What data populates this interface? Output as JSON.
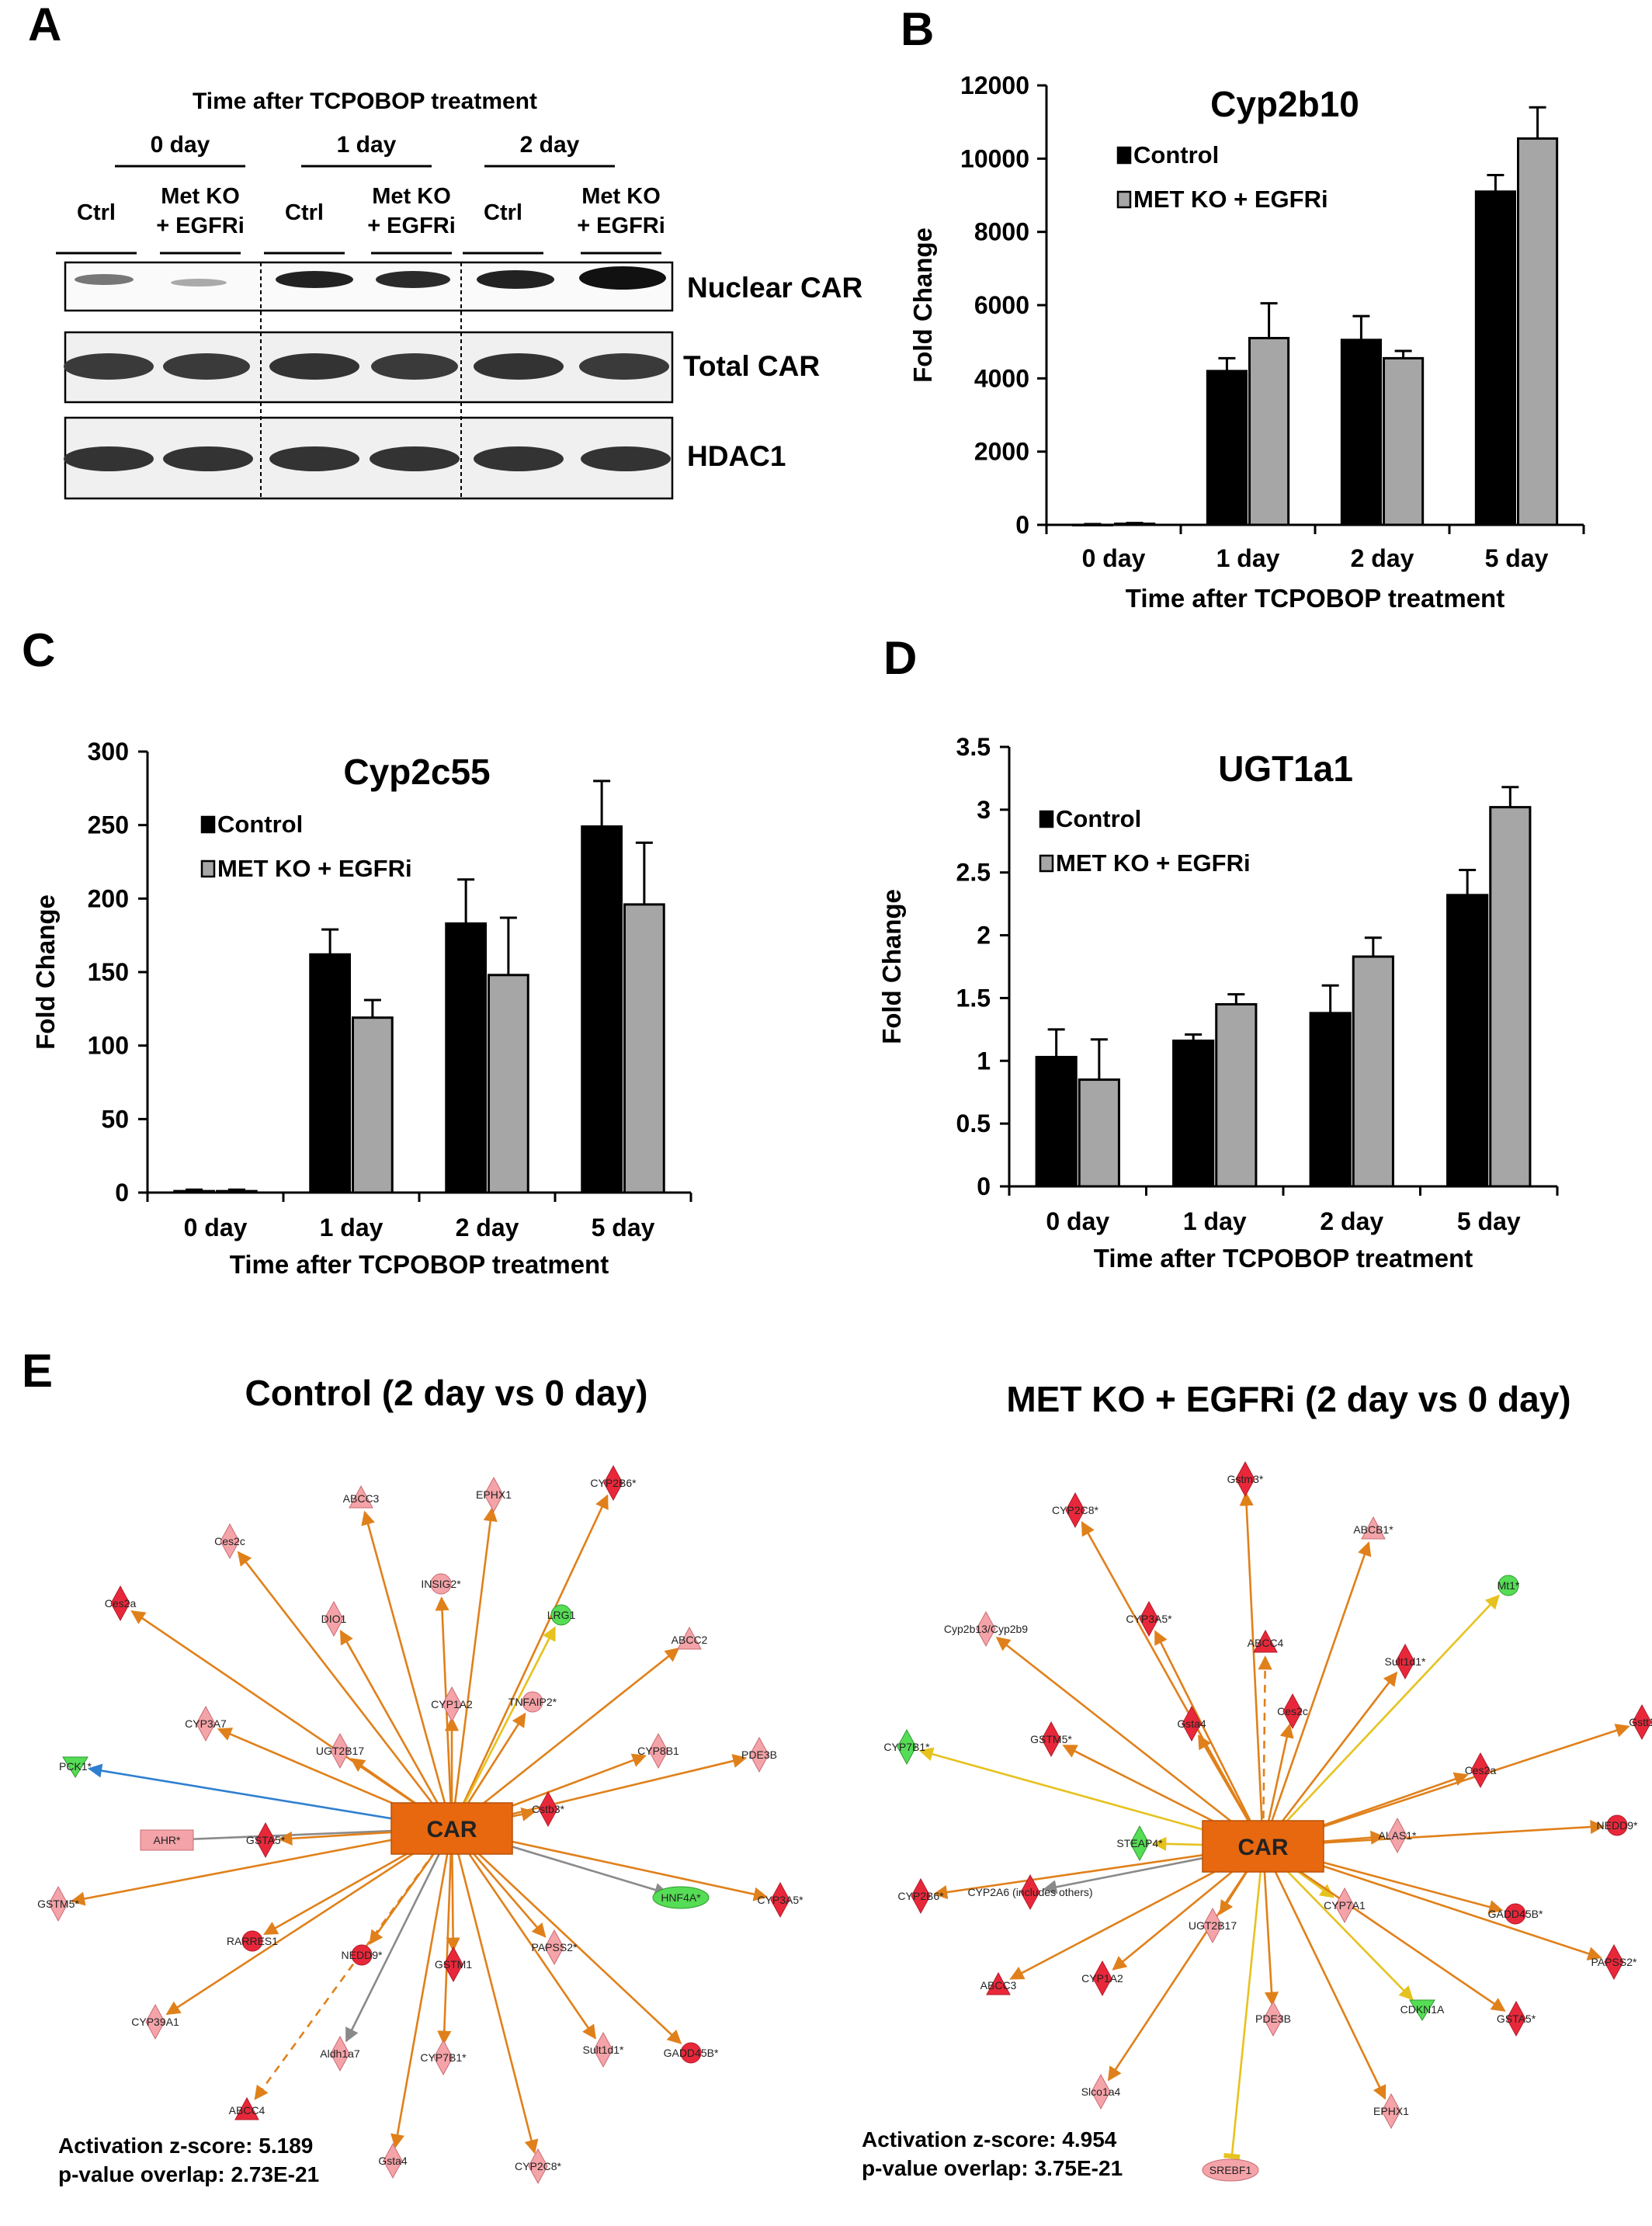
{
  "panel_a": {
    "letter": "A",
    "header": "Time after TCPOBOP treatment",
    "day_groups": [
      "0 day",
      "1 day",
      "2 day"
    ],
    "lanes": [
      "Ctrl",
      "Met KO\n+ EGFRi",
      "Ctrl",
      "Met KO\n+ EGFRi",
      "Ctrl",
      "Met KO\n+ EGFRi"
    ],
    "blots": [
      "Nuclear  CAR",
      "Total  CAR",
      "HDAC1"
    ]
  },
  "chart_data": [
    {
      "id": "B",
      "type": "bar",
      "title": "Cyp2b10",
      "categories": [
        "0 day",
        "1 day",
        "2 day",
        "5 day"
      ],
      "xlabel": "Time after TCPOBOP treatment",
      "ylabel": "Fold Change",
      "ylim": [
        0,
        12000
      ],
      "yticks": [
        0,
        2000,
        4000,
        6000,
        8000,
        10000,
        12000
      ],
      "legend_position": "top-left",
      "series": [
        {
          "name": "Control",
          "color": "#000000",
          "values": [
            1,
            4200,
            5050,
            9100
          ],
          "errors": [
            20,
            350,
            650,
            450
          ]
        },
        {
          "name": "MET KO + EGFRi",
          "color": "#a6a6a6",
          "values": [
            30,
            5100,
            4550,
            10550
          ],
          "errors": [
            20,
            950,
            200,
            850
          ]
        }
      ]
    },
    {
      "id": "C",
      "type": "bar",
      "title": "Cyp2c55",
      "categories": [
        "0 day",
        "1 day",
        "2 day",
        "5 day"
      ],
      "xlabel": "Time after TCPOBOP treatment",
      "ylabel": "Fold Change",
      "ylim": [
        0,
        300
      ],
      "yticks": [
        0,
        50,
        100,
        150,
        200,
        250,
        300
      ],
      "legend_position": "top-left",
      "series": [
        {
          "name": "Control",
          "color": "#000000",
          "values": [
            1,
            162,
            183,
            249
          ],
          "errors": [
            1,
            17,
            30,
            31
          ]
        },
        {
          "name": "MET KO + EGFRi",
          "color": "#a6a6a6",
          "values": [
            1,
            119,
            148,
            196
          ],
          "errors": [
            1,
            12,
            39,
            42
          ]
        }
      ]
    },
    {
      "id": "D",
      "type": "bar",
      "title": "UGT1a1",
      "categories": [
        "0 day",
        "1 day",
        "2 day",
        "5 day"
      ],
      "xlabel": "Time after TCPOBOP treatment",
      "ylabel": "Fold Change",
      "ylim": [
        0,
        3.5
      ],
      "yticks": [
        "0",
        "0.5",
        "1",
        "1.5",
        "2",
        "2.5",
        "3",
        "3.5"
      ],
      "legend_position": "top-left",
      "series": [
        {
          "name": "Control",
          "color": "#000000",
          "values": [
            1.03,
            1.16,
            1.38,
            2.32
          ],
          "errors": [
            0.22,
            0.05,
            0.22,
            0.2
          ]
        },
        {
          "name": "MET KO + EGFRi",
          "color": "#a6a6a6",
          "values": [
            0.85,
            1.45,
            1.83,
            3.02
          ],
          "errors": [
            0.32,
            0.08,
            0.15,
            0.16
          ]
        }
      ]
    }
  ],
  "panel_e": {
    "letter": "E",
    "left": {
      "title": "Control (2 day vs 0 day)",
      "hub": "CAR",
      "zscore": "Activation z-score:  5.189",
      "pvalue": "p-value overlap:  2.73E-21",
      "nodes": [
        {
          "label": "ABCC3",
          "shape": "triangle",
          "color": "pink",
          "edge": "orange"
        },
        {
          "label": "EPHX1",
          "shape": "diamond",
          "color": "pink",
          "edge": "orange"
        },
        {
          "label": "CYP2B6*",
          "shape": "diamond",
          "color": "red",
          "edge": "orange"
        },
        {
          "label": "Ces2c",
          "shape": "diamond",
          "color": "pink",
          "edge": "orange"
        },
        {
          "label": "INSIG2*",
          "shape": "circle",
          "color": "pink",
          "edge": "orange"
        },
        {
          "label": "LRG1",
          "shape": "circle",
          "color": "green",
          "edge": "yellow"
        },
        {
          "label": "Ces2a",
          "shape": "diamond",
          "color": "red",
          "edge": "orange"
        },
        {
          "label": "DIO1",
          "shape": "diamond",
          "color": "pink",
          "edge": "orange"
        },
        {
          "label": "ABCC2",
          "shape": "triangle",
          "color": "pink",
          "edge": "orange"
        },
        {
          "label": "CYP1A2",
          "shape": "diamond",
          "color": "pink",
          "edge": "orange"
        },
        {
          "label": "TNFAIP2*",
          "shape": "circle",
          "color": "pink",
          "edge": "orange"
        },
        {
          "label": "CYP3A7",
          "shape": "diamond",
          "color": "pink",
          "edge": "orange"
        },
        {
          "label": "UGT2B17",
          "shape": "diamond",
          "color": "pink",
          "edge": "orange"
        },
        {
          "label": "CYP8B1",
          "shape": "diamond",
          "color": "pink",
          "edge": "orange"
        },
        {
          "label": "PDE3B",
          "shape": "diamond",
          "color": "pink",
          "edge": "orange"
        },
        {
          "label": "PCK1*",
          "shape": "triangle-down",
          "color": "green",
          "edge": "blue"
        },
        {
          "label": "AHR*",
          "shape": "rect",
          "color": "pink",
          "edge": "gray"
        },
        {
          "label": "GSTA5*",
          "shape": "diamond",
          "color": "red",
          "edge": "orange"
        },
        {
          "label": "Cstb3*",
          "shape": "diamond",
          "color": "red",
          "edge": "orange"
        },
        {
          "label": "HNF4A*",
          "shape": "ellipse",
          "color": "green",
          "edge": "gray"
        },
        {
          "label": "CYP3A5*",
          "shape": "diamond",
          "color": "red",
          "edge": "orange"
        },
        {
          "label": "GSTM5*",
          "shape": "diamond",
          "color": "pink",
          "edge": "orange"
        },
        {
          "label": "RARRES1",
          "shape": "circle",
          "color": "red",
          "edge": "orange"
        },
        {
          "label": "NEDD9*",
          "shape": "circle",
          "color": "red",
          "edge": "orange"
        },
        {
          "label": "GSTM1",
          "shape": "diamond",
          "color": "red",
          "edge": "orange"
        },
        {
          "label": "PAPSS2*",
          "shape": "diamond",
          "color": "pink",
          "edge": "orange"
        },
        {
          "label": "CYP39A1",
          "shape": "diamond",
          "color": "pink",
          "edge": "orange"
        },
        {
          "label": "Aldh1a7",
          "shape": "diamond",
          "color": "pink",
          "edge": "gray"
        },
        {
          "label": "CYP7B1*",
          "shape": "diamond",
          "color": "pink",
          "edge": "orange"
        },
        {
          "label": "Sult1d1*",
          "shape": "diamond",
          "color": "pink",
          "edge": "orange"
        },
        {
          "label": "GADD45B*",
          "shape": "circle",
          "color": "red",
          "edge": "orange"
        },
        {
          "label": "ABCC4",
          "shape": "triangle",
          "color": "red",
          "edge": "orange-dashed"
        },
        {
          "label": "Gsta4",
          "shape": "diamond",
          "color": "pink",
          "edge": "orange"
        },
        {
          "label": "CYP2C8*",
          "shape": "diamond",
          "color": "pink",
          "edge": "orange"
        }
      ]
    },
    "right": {
      "title": "MET KO + EGFRi (2 day vs 0 day)",
      "hub": "CAR",
      "zscore": "Activation z-score:  4.954",
      "pvalue": "p-value overlap:  3.75E-21",
      "nodes": [
        {
          "label": "Gstm3*",
          "shape": "diamond",
          "color": "red",
          "edge": "orange"
        },
        {
          "label": "CYP2C8*",
          "shape": "diamond",
          "color": "red",
          "edge": "orange"
        },
        {
          "label": "ABCB1*",
          "shape": "triangle",
          "color": "pink",
          "edge": "orange"
        },
        {
          "label": "Mt1*",
          "shape": "circle",
          "color": "green",
          "edge": "yellow"
        },
        {
          "label": "CYP3A5*",
          "shape": "diamond",
          "color": "red",
          "edge": "orange"
        },
        {
          "label": "ABCC4",
          "shape": "triangle",
          "color": "red",
          "edge": "orange-dashed"
        },
        {
          "label": "Cyp2b13/Cyp2b9",
          "shape": "diamond",
          "color": "pink",
          "edge": "orange"
        },
        {
          "label": "Sult1d1*",
          "shape": "diamond",
          "color": "red",
          "edge": "orange"
        },
        {
          "label": "Ces2c",
          "shape": "diamond",
          "color": "red",
          "edge": "orange"
        },
        {
          "label": "Gstt1",
          "shape": "diamond",
          "color": "red",
          "edge": "orange"
        },
        {
          "label": "CYP7B1*",
          "shape": "diamond",
          "color": "green",
          "edge": "yellow"
        },
        {
          "label": "GSTM5*",
          "shape": "diamond",
          "color": "red",
          "edge": "orange"
        },
        {
          "label": "Gsta4",
          "shape": "diamond",
          "color": "red",
          "edge": "orange"
        },
        {
          "label": "Ces2a",
          "shape": "diamond",
          "color": "red",
          "edge": "orange"
        },
        {
          "label": "STEAP4*",
          "shape": "diamond",
          "color": "green",
          "edge": "yellow"
        },
        {
          "label": "ALAS1*",
          "shape": "diamond",
          "color": "pink",
          "edge": "orange"
        },
        {
          "label": "NEDD9*",
          "shape": "circle",
          "color": "red",
          "edge": "orange"
        },
        {
          "label": "CYP2B6*",
          "shape": "diamond",
          "color": "red",
          "edge": "orange"
        },
        {
          "label": "CYP2A6 (includes others)",
          "shape": "diamond",
          "color": "red",
          "edge": "gray"
        },
        {
          "label": "GADD45B*",
          "shape": "circle",
          "color": "red",
          "edge": "orange"
        },
        {
          "label": "UGT2B17",
          "shape": "diamond",
          "color": "pink",
          "edge": "orange"
        },
        {
          "label": "CYP7A1",
          "shape": "diamond",
          "color": "pink",
          "edge": "yellow"
        },
        {
          "label": "PAPSS2*",
          "shape": "diamond",
          "color": "red",
          "edge": "orange"
        },
        {
          "label": "ABCC3",
          "shape": "triangle",
          "color": "red",
          "edge": "orange"
        },
        {
          "label": "CYP1A2",
          "shape": "diamond",
          "color": "red",
          "edge": "orange"
        },
        {
          "label": "CDKN1A",
          "shape": "triangle-down",
          "color": "green",
          "edge": "yellow"
        },
        {
          "label": "PDE3B",
          "shape": "diamond",
          "color": "pink",
          "edge": "orange"
        },
        {
          "label": "GSTA5*",
          "shape": "diamond",
          "color": "red",
          "edge": "orange"
        },
        {
          "label": "Slco1a4",
          "shape": "diamond",
          "color": "pink",
          "edge": "orange"
        },
        {
          "label": "EPHX1",
          "shape": "diamond",
          "color": "pink",
          "edge": "orange"
        },
        {
          "label": "SREBF1",
          "shape": "ellipse",
          "color": "pink",
          "edge": "yellow-inhibit"
        }
      ]
    }
  },
  "colors": {
    "control_bar": "#000000",
    "metko_bar": "#a6a6a6",
    "hub": "#e8680f",
    "edge_orange": "#e0801a",
    "edge_yellow": "#e6c21e",
    "edge_blue": "#2e7fd0",
    "edge_gray": "#8a8a8a",
    "node_red": "#e8283a",
    "node_pink": "#f4a3a8",
    "node_green": "#55dd55"
  }
}
